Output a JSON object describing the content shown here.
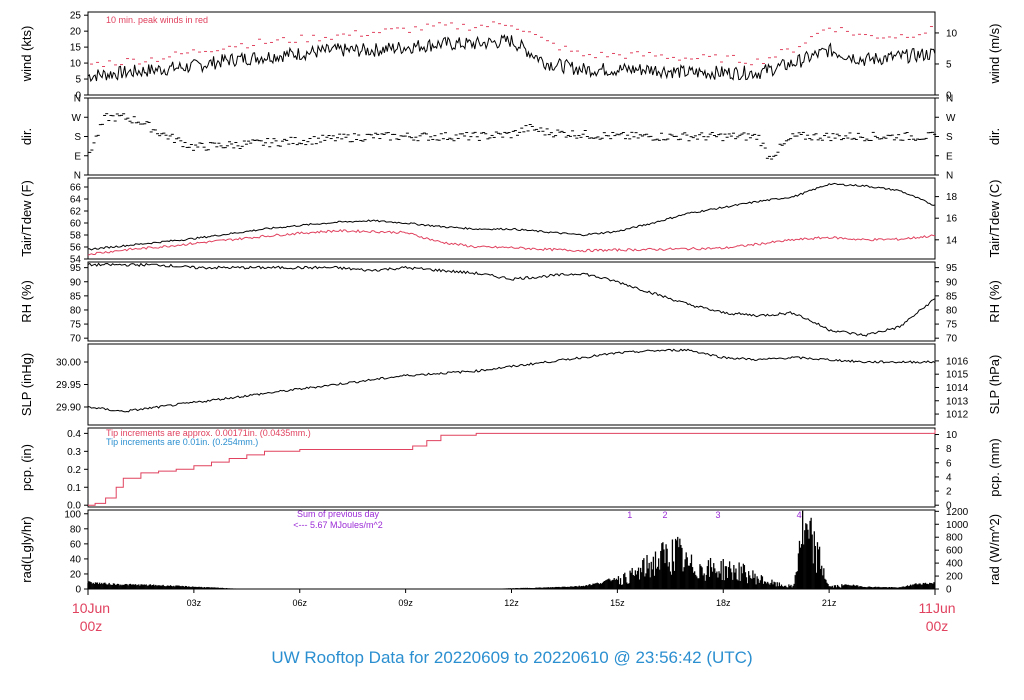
{
  "footer_title": "UW Rooftop Data for 20220609  to  20220610 @ 23:56:42  (UTC)",
  "colors": {
    "axis": "#000000",
    "red": "#e0425f",
    "blue": "#2b8fd0",
    "purple": "#9b2bd6",
    "trace": "#000000"
  },
  "time_axis": {
    "ticks": [
      "03z",
      "06z",
      "09z",
      "12z",
      "15z",
      "18z",
      "21z"
    ],
    "start_label": [
      "10Jun",
      "00z"
    ],
    "end_label": [
      "11Jun",
      "00z"
    ]
  },
  "panels": {
    "wind": {
      "ylabel_left": "wind (kts)",
      "ylabel_right": "wind (m/s)",
      "left_ticks": [
        "0",
        "5",
        "10",
        "15",
        "20",
        "25"
      ],
      "right_ticks": [
        "0",
        "5",
        "10"
      ],
      "annotation": "10 min. peak winds in red"
    },
    "dir": {
      "ylabel_left": "dir.",
      "ylabel_right": "dir.",
      "ticks": [
        "N",
        "E",
        "S",
        "W",
        "N"
      ]
    },
    "temp": {
      "ylabel_left": "Tair/Tdew (F)",
      "ylabel_right": "Tair/Tdew (C)",
      "left_ticks": [
        "54",
        "56",
        "58",
        "60",
        "62",
        "64",
        "66"
      ],
      "right_ticks": [
        "14",
        "16",
        "18"
      ]
    },
    "rh": {
      "ylabel_left": "RH (%)",
      "ylabel_right": "RH (%)",
      "left_ticks": [
        "70",
        "75",
        "80",
        "85",
        "90",
        "95"
      ],
      "right_ticks": [
        "70",
        "75",
        "80",
        "85",
        "90",
        "95"
      ]
    },
    "slp": {
      "ylabel_left": "SLP (inHg)",
      "ylabel_right": "SLP (hPa)",
      "left_ticks": [
        "29.90",
        "29.95",
        "30.00"
      ],
      "right_ticks": [
        "1012",
        "1013",
        "1014",
        "1015",
        "1016"
      ]
    },
    "pcp": {
      "ylabel_left": "pcp. (in)",
      "ylabel_right": "pcp. (mm)",
      "left_ticks": [
        "0.0",
        "0.1",
        "0.2",
        "0.3",
        "0.4"
      ],
      "right_ticks": [
        "0",
        "2",
        "4",
        "6",
        "8",
        "10"
      ],
      "note_red": "Tip increments are approx. 0.00171in. (0.0435mm.)",
      "note_blue": "Tip increments are 0.01in. (0.254mm.)"
    },
    "rad": {
      "ylabel_left": "rad(Lgly/hr)",
      "ylabel_right": "rad (W/m^2)",
      "left_ticks": [
        "0",
        "20",
        "40",
        "60",
        "80",
        "100"
      ],
      "right_ticks": [
        "0",
        "200",
        "400",
        "600",
        "800",
        "1000",
        "1200"
      ],
      "sum_line1": "Sum of previous day",
      "sum_line2": "<--- 5.67 MJoules/m^2",
      "markers": [
        "1",
        "2",
        "3",
        "4"
      ]
    }
  },
  "chart_data": [
    {
      "type": "line",
      "name": "wind",
      "x": [
        0,
        1,
        2,
        3,
        4,
        5,
        6,
        7,
        8,
        9,
        10,
        11,
        12,
        13,
        14,
        15,
        16,
        17,
        18,
        19,
        20,
        21,
        22,
        23,
        24
      ],
      "series": [
        {
          "values": [
            6,
            7,
            8,
            9,
            11,
            12,
            13,
            14,
            14,
            15,
            16,
            16,
            17,
            10,
            8,
            8,
            8,
            7,
            7,
            7,
            10,
            14,
            11,
            12,
            13
          ]
        },
        {
          "values": [
            9,
            10,
            11,
            13,
            15,
            16,
            17,
            18,
            19,
            20,
            21,
            21,
            22,
            16,
            12,
            12,
            12,
            11,
            11,
            10,
            14,
            21,
            18,
            18,
            20
          ]
        }
      ],
      "ylim": [
        0,
        26
      ]
    },
    {
      "type": "scatter",
      "name": "direction",
      "x": [
        0,
        0.5,
        1,
        1.5,
        2,
        3,
        4,
        5,
        6,
        7,
        8,
        9,
        10,
        11,
        12,
        12.5,
        13,
        14,
        15,
        16,
        17,
        18,
        19,
        19.3,
        20,
        21,
        22,
        23,
        24
      ],
      "values": [
        90,
        270,
        270,
        250,
        200,
        130,
        140,
        150,
        160,
        170,
        180,
        180,
        180,
        180,
        190,
        220,
        200,
        190,
        180,
        180,
        180,
        180,
        180,
        80,
        180,
        180,
        180,
        180,
        180
      ],
      "ylim": [
        0,
        360
      ]
    },
    {
      "type": "line",
      "name": "temperature",
      "x": [
        0,
        1,
        2,
        3,
        4,
        5,
        6,
        7,
        8,
        9,
        10,
        11,
        12,
        13,
        14,
        15,
        16,
        17,
        18,
        19,
        20,
        21,
        22,
        23,
        24
      ],
      "series": [
        {
          "values": [
            55.6,
            56.2,
            56.8,
            57.4,
            58.2,
            59,
            59.6,
            60.1,
            60.4,
            60,
            59.4,
            59,
            59,
            58.5,
            58,
            58.6,
            60,
            61.6,
            62.6,
            63.6,
            64.4,
            66.5,
            66.2,
            65.4,
            62.9
          ]
        },
        {
          "values": [
            54.8,
            55.5,
            56,
            56.6,
            57.2,
            57.8,
            58.3,
            58.7,
            58.6,
            58.4,
            56.8,
            56,
            55.9,
            55.6,
            55.4,
            55.5,
            55.6,
            55.7,
            55.8,
            56.5,
            57.2,
            57.6,
            57.2,
            57.3,
            57.9
          ]
        }
      ],
      "ylim": [
        54,
        67.5
      ]
    },
    {
      "type": "line",
      "name": "relative humidity",
      "x": [
        0,
        1,
        2,
        3,
        4,
        5,
        6,
        7,
        8,
        9,
        10,
        11,
        12,
        13,
        14,
        15,
        16,
        17,
        18,
        19,
        20,
        21,
        22,
        23,
        24
      ],
      "values": [
        96,
        96,
        96,
        95,
        95,
        95,
        95,
        95,
        94,
        95,
        94,
        93,
        91,
        92,
        93,
        90,
        86,
        82,
        79,
        78,
        79,
        73,
        71,
        74,
        84
      ],
      "ylim": [
        69,
        97
      ]
    },
    {
      "type": "line",
      "name": "sea level pressure",
      "x": [
        0,
        1,
        2,
        3,
        4,
        5,
        6,
        7,
        8,
        9,
        10,
        11,
        12,
        13,
        14,
        15,
        16,
        17,
        18,
        19,
        20,
        21,
        22,
        23,
        24
      ],
      "values": [
        29.9,
        29.89,
        29.9,
        29.91,
        29.92,
        29.93,
        29.94,
        29.95,
        29.96,
        29.97,
        29.975,
        29.98,
        29.99,
        30.0,
        30.01,
        30.02,
        30.025,
        30.027,
        30.01,
        30.005,
        30.01,
        30.005,
        30.0,
        30.0,
        30.0
      ],
      "ylim": [
        29.86,
        30.04
      ]
    },
    {
      "type": "line",
      "name": "precipitation",
      "x": [
        0,
        0.2,
        0.5,
        0.8,
        1,
        1.5,
        2,
        2.5,
        3,
        3.5,
        4,
        4.5,
        5,
        6,
        7,
        8,
        9,
        9.2,
        9.6,
        10,
        11,
        12,
        13,
        14,
        15,
        16,
        17,
        18,
        19,
        20,
        21,
        22,
        23,
        23.8,
        24
      ],
      "values": [
        0,
        0.01,
        0.04,
        0.1,
        0.15,
        0.18,
        0.19,
        0.2,
        0.22,
        0.24,
        0.26,
        0.28,
        0.3,
        0.31,
        0.31,
        0.31,
        0.31,
        0.33,
        0.36,
        0.39,
        0.4,
        0.4,
        0.4,
        0.4,
        0.4,
        0.4,
        0.4,
        0.4,
        0.4,
        0.4,
        0.4,
        0.4,
        0.4,
        0.4,
        0.42
      ],
      "ylim": [
        -0.01,
        0.43
      ]
    },
    {
      "type": "area",
      "name": "solar radiation",
      "x": [
        0,
        0.5,
        1,
        2,
        3,
        4,
        4.5,
        11.3,
        12,
        13,
        14,
        14.5,
        15,
        15.5,
        16,
        16.3,
        16.7,
        17,
        17.5,
        18,
        18.5,
        19,
        19.5,
        20,
        20.2,
        20.5,
        20.8,
        21,
        21.5,
        22,
        23,
        23.5,
        24
      ],
      "values": [
        9,
        7,
        6,
        5,
        3,
        1,
        0,
        0,
        1,
        2,
        4,
        8,
        15,
        25,
        45,
        55,
        63,
        40,
        35,
        35,
        30,
        18,
        8,
        4,
        98,
        80,
        40,
        4,
        6,
        3,
        2,
        7,
        8
      ],
      "ylim": [
        0,
        105
      ]
    }
  ]
}
